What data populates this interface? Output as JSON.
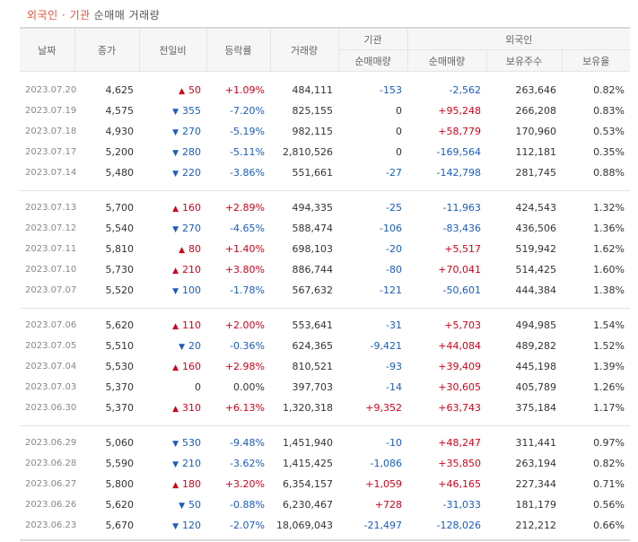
{
  "title": {
    "highlight": "외국인 · 기관",
    "rest": "순매매 거래량"
  },
  "headers": {
    "date": "날짜",
    "close": "종가",
    "change": "전일비",
    "rate": "등락률",
    "volume": "거래량",
    "institution": "기관",
    "foreign": "외국인",
    "inst_net": "순매매량",
    "foreign_net": "순매매량",
    "holdings": "보유주수",
    "ratio": "보유율"
  },
  "colors": {
    "up": "#d0021b",
    "down": "#1a5dbd",
    "accent": "#e8533d"
  },
  "rows": [
    {
      "date": "2023.07.20",
      "close": "4,625",
      "dir": "up",
      "change": "50",
      "rate": "+1.09%",
      "volume": "484,111",
      "inst": "-153",
      "foreign": "-2,562",
      "holdings": "263,646",
      "ratio": "0.82%"
    },
    {
      "date": "2023.07.19",
      "close": "4,575",
      "dir": "down",
      "change": "355",
      "rate": "-7.20%",
      "volume": "825,155",
      "inst": "0",
      "foreign": "+95,248",
      "holdings": "266,208",
      "ratio": "0.83%"
    },
    {
      "date": "2023.07.18",
      "close": "4,930",
      "dir": "down",
      "change": "270",
      "rate": "-5.19%",
      "volume": "982,115",
      "inst": "0",
      "foreign": "+58,779",
      "holdings": "170,960",
      "ratio": "0.53%"
    },
    {
      "date": "2023.07.17",
      "close": "5,200",
      "dir": "down",
      "change": "280",
      "rate": "-5.11%",
      "volume": "2,810,526",
      "inst": "0",
      "foreign": "-169,564",
      "holdings": "112,181",
      "ratio": "0.35%"
    },
    {
      "date": "2023.07.14",
      "close": "5,480",
      "dir": "down",
      "change": "220",
      "rate": "-3.86%",
      "volume": "551,661",
      "inst": "-27",
      "foreign": "-142,798",
      "holdings": "281,745",
      "ratio": "0.88%"
    },
    {
      "date": "2023.07.13",
      "close": "5,700",
      "dir": "up",
      "change": "160",
      "rate": "+2.89%",
      "volume": "494,335",
      "inst": "-25",
      "foreign": "-11,963",
      "holdings": "424,543",
      "ratio": "1.32%"
    },
    {
      "date": "2023.07.12",
      "close": "5,540",
      "dir": "down",
      "change": "270",
      "rate": "-4.65%",
      "volume": "588,474",
      "inst": "-106",
      "foreign": "-83,436",
      "holdings": "436,506",
      "ratio": "1.36%"
    },
    {
      "date": "2023.07.11",
      "close": "5,810",
      "dir": "up",
      "change": "80",
      "rate": "+1.40%",
      "volume": "698,103",
      "inst": "-20",
      "foreign": "+5,517",
      "holdings": "519,942",
      "ratio": "1.62%"
    },
    {
      "date": "2023.07.10",
      "close": "5,730",
      "dir": "up",
      "change": "210",
      "rate": "+3.80%",
      "volume": "886,744",
      "inst": "-80",
      "foreign": "+70,041",
      "holdings": "514,425",
      "ratio": "1.60%"
    },
    {
      "date": "2023.07.07",
      "close": "5,520",
      "dir": "down",
      "change": "100",
      "rate": "-1.78%",
      "volume": "567,632",
      "inst": "-121",
      "foreign": "-50,601",
      "holdings": "444,384",
      "ratio": "1.38%"
    },
    {
      "date": "2023.07.06",
      "close": "5,620",
      "dir": "up",
      "change": "110",
      "rate": "+2.00%",
      "volume": "553,641",
      "inst": "-31",
      "foreign": "+5,703",
      "holdings": "494,985",
      "ratio": "1.54%"
    },
    {
      "date": "2023.07.05",
      "close": "5,510",
      "dir": "down",
      "change": "20",
      "rate": "-0.36%",
      "volume": "624,365",
      "inst": "-9,421",
      "foreign": "+44,084",
      "holdings": "489,282",
      "ratio": "1.52%"
    },
    {
      "date": "2023.07.04",
      "close": "5,530",
      "dir": "up",
      "change": "160",
      "rate": "+2.98%",
      "volume": "810,521",
      "inst": "-93",
      "foreign": "+39,409",
      "holdings": "445,198",
      "ratio": "1.39%"
    },
    {
      "date": "2023.07.03",
      "close": "5,370",
      "dir": "none",
      "change": "0",
      "rate": "0.00%",
      "volume": "397,703",
      "inst": "-14",
      "foreign": "+30,605",
      "holdings": "405,789",
      "ratio": "1.26%"
    },
    {
      "date": "2023.06.30",
      "close": "5,370",
      "dir": "up",
      "change": "310",
      "rate": "+6.13%",
      "volume": "1,320,318",
      "inst": "+9,352",
      "foreign": "+63,743",
      "holdings": "375,184",
      "ratio": "1.17%"
    },
    {
      "date": "2023.06.29",
      "close": "5,060",
      "dir": "down",
      "change": "530",
      "rate": "-9.48%",
      "volume": "1,451,940",
      "inst": "-10",
      "foreign": "+48,247",
      "holdings": "311,441",
      "ratio": "0.97%"
    },
    {
      "date": "2023.06.28",
      "close": "5,590",
      "dir": "down",
      "change": "210",
      "rate": "-3.62%",
      "volume": "1,415,425",
      "inst": "-1,086",
      "foreign": "+35,850",
      "holdings": "263,194",
      "ratio": "0.82%"
    },
    {
      "date": "2023.06.27",
      "close": "5,800",
      "dir": "up",
      "change": "180",
      "rate": "+3.20%",
      "volume": "6,354,157",
      "inst": "+1,059",
      "foreign": "+46,165",
      "holdings": "227,344",
      "ratio": "0.71%"
    },
    {
      "date": "2023.06.26",
      "close": "5,620",
      "dir": "down",
      "change": "50",
      "rate": "-0.88%",
      "volume": "6,230,467",
      "inst": "+728",
      "foreign": "-31,033",
      "holdings": "181,179",
      "ratio": "0.56%"
    },
    {
      "date": "2023.06.23",
      "close": "5,670",
      "dir": "down",
      "change": "120",
      "rate": "-2.07%",
      "volume": "18,069,043",
      "inst": "-21,497",
      "foreign": "-128,026",
      "holdings": "212,212",
      "ratio": "0.66%"
    }
  ]
}
